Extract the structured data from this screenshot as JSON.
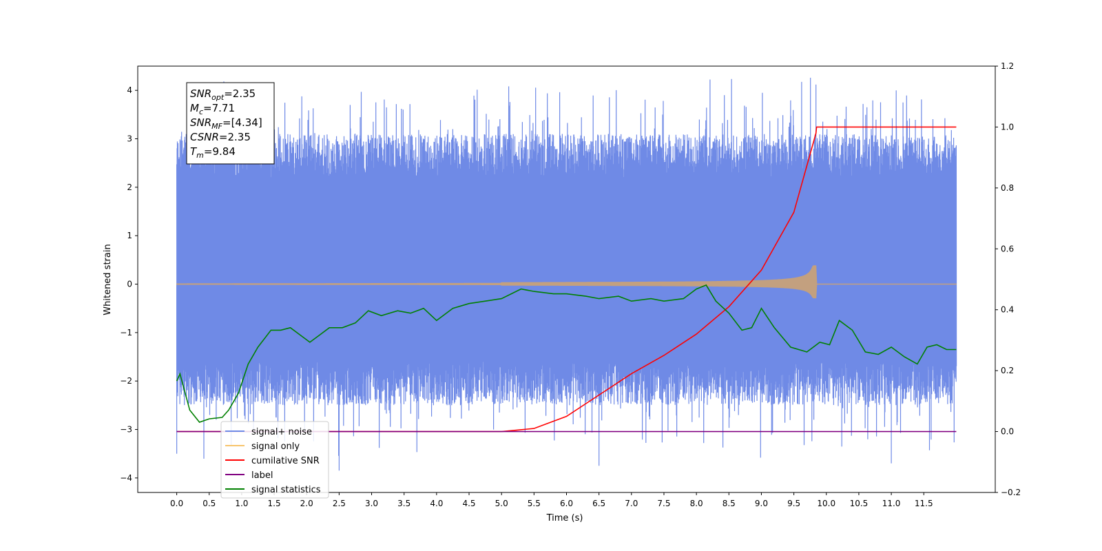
{
  "chart_data": {
    "type": "line",
    "xlabel": "Time (s)",
    "ylabel": "Whitened strain",
    "xlim": [
      -0.6,
      12.6
    ],
    "ylim": [
      -4.3,
      4.5
    ],
    "ylim_right": [
      -0.2,
      1.2
    ],
    "x_ticks": [
      "0.0",
      "0.5",
      "1.0",
      "1.5",
      "2.0",
      "2.5",
      "3.0",
      "3.5",
      "4.0",
      "4.5",
      "5.0",
      "5.5",
      "6.0",
      "6.5",
      "7.0",
      "7.5",
      "8.0",
      "8.5",
      "9.0",
      "9.5",
      "10.0",
      "10.5",
      "11.0",
      "11.5"
    ],
    "y_ticks": [
      "4",
      "3",
      "2",
      "1",
      "0",
      "−1",
      "−2",
      "−3",
      "−4"
    ],
    "y_ticks_right": [
      "1.2",
      "1.0",
      "0.8",
      "0.6",
      "0.4",
      "0.2",
      "0.0",
      "−0.2"
    ],
    "annotation": {
      "lines": [
        {
          "sym": "SNR",
          "sub": "opt",
          "val": "=2.35"
        },
        {
          "sym": "M",
          "sub": "c",
          "val": "=7.71"
        },
        {
          "sym": "SNR",
          "sub": "MF",
          "val": "=[4.34]"
        },
        {
          "sym": "CSNR",
          "sub": "",
          "val": "=2.35"
        },
        {
          "sym": "T",
          "sub": "m",
          "val": "=9.84"
        }
      ]
    },
    "legend": {
      "position": "lower-left",
      "entries": [
        {
          "label": "signal+ noise",
          "color": "#6f8ae6"
        },
        {
          "label": "signal only",
          "color": "#f7c46c"
        },
        {
          "label": "cumilative SNR",
          "color": "#ff0000"
        },
        {
          "label": "label",
          "color": "#800080"
        },
        {
          "label": "signal statistics",
          "color": "#008000"
        }
      ]
    },
    "series": [
      {
        "name": "signal+ noise",
        "axis": "left",
        "color": "#6f8ae6",
        "x_range": [
          0.0,
          12.0
        ],
        "band": [
          -1.6,
          2.2
        ],
        "peaks": [
          [
            9.84,
            4.12
          ],
          [
            0.0,
            -3.5
          ],
          [
            2.5,
            -3.85
          ],
          [
            6.5,
            -3.75
          ],
          [
            11.0,
            -3.7
          ]
        ]
      },
      {
        "name": "signal only",
        "axis": "left",
        "color": "#f7c46c",
        "x_range": [
          0.0,
          12.0
        ],
        "chirp_end": 9.84,
        "chirp_peak": 0.38
      },
      {
        "name": "cumilative SNR",
        "axis": "right",
        "color": "#ff0000",
        "x": [
          0.0,
          5.0,
          5.5,
          6.0,
          6.5,
          7.0,
          7.5,
          8.0,
          8.5,
          9.0,
          9.5,
          9.84,
          9.85,
          12.0
        ],
        "y": [
          0.0,
          0.0,
          0.01,
          0.05,
          0.12,
          0.19,
          0.25,
          0.32,
          0.41,
          0.53,
          0.72,
          0.98,
          1.0,
          1.0
        ]
      },
      {
        "name": "label",
        "axis": "right",
        "color": "#800080",
        "x": [
          0.0,
          12.0
        ],
        "y": [
          0.0,
          0.0
        ]
      },
      {
        "name": "signal statistics",
        "axis": "left",
        "color": "#008000",
        "x": [
          0.0,
          0.05,
          0.2,
          0.35,
          0.5,
          0.7,
          0.8,
          0.95,
          1.1,
          1.25,
          1.45,
          1.6,
          1.75,
          1.9,
          2.05,
          2.2,
          2.35,
          2.55,
          2.75,
          2.95,
          3.15,
          3.4,
          3.6,
          3.8,
          4.0,
          4.25,
          4.5,
          4.75,
          5.0,
          5.3,
          5.5,
          5.8,
          6.0,
          6.3,
          6.5,
          6.8,
          7.0,
          7.3,
          7.5,
          7.8,
          8.0,
          8.15,
          8.3,
          8.5,
          8.7,
          8.85,
          9.0,
          9.2,
          9.45,
          9.7,
          9.9,
          10.05,
          10.2,
          10.4,
          10.6,
          10.8,
          11.0,
          11.2,
          11.4,
          11.55,
          11.7,
          11.85,
          12.0
        ],
        "y": [
          -2.0,
          -1.85,
          -2.6,
          -2.85,
          -2.78,
          -2.75,
          -2.6,
          -2.25,
          -1.65,
          -1.3,
          -0.95,
          -0.95,
          -0.9,
          -1.05,
          -1.2,
          -1.05,
          -0.9,
          -0.9,
          -0.8,
          -0.55,
          -0.65,
          -0.55,
          -0.6,
          -0.5,
          -0.75,
          -0.5,
          -0.4,
          -0.35,
          -0.3,
          -0.1,
          -0.15,
          -0.2,
          -0.2,
          -0.25,
          -0.3,
          -0.25,
          -0.35,
          -0.3,
          -0.35,
          -0.3,
          -0.1,
          -0.02,
          -0.35,
          -0.6,
          -0.95,
          -0.9,
          -0.5,
          -0.9,
          -1.3,
          -1.4,
          -1.2,
          -1.25,
          -0.75,
          -0.95,
          -1.4,
          -1.45,
          -1.3,
          -1.5,
          -1.65,
          -1.3,
          -1.25,
          -1.35,
          -1.35
        ]
      }
    ]
  }
}
